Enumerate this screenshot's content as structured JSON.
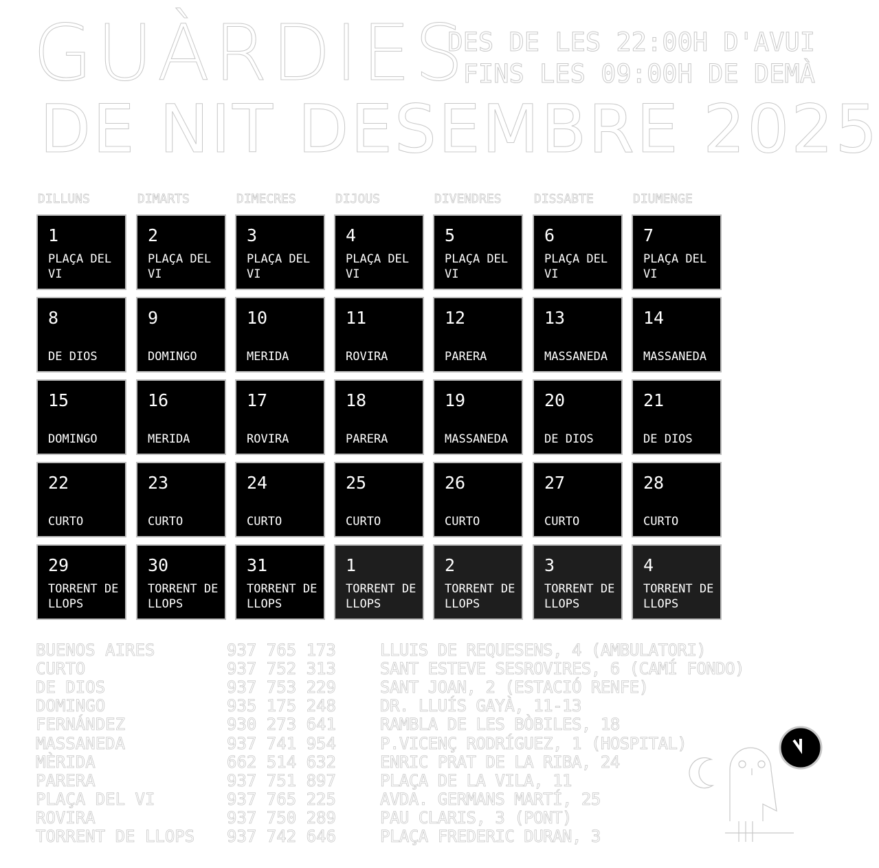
{
  "header": {
    "title_line1": "GUÀRDIES",
    "title_line2": "DE NIT DESEMBRE 2025",
    "hours_line1": "DES DE LES 22:00H D'AVUI",
    "hours_line2": "FINS LES 09:00H DE DEMÀ"
  },
  "weekdays": [
    "DILLUNS",
    "DIMARTS",
    "DIMECRES",
    "DIJOUS",
    "DIVENDRES",
    "DISSABTE",
    "DIUMENGE"
  ],
  "calendar": [
    {
      "day": "1",
      "pharmacy": "PLAÇA DEL VI"
    },
    {
      "day": "2",
      "pharmacy": "PLAÇA DEL VI"
    },
    {
      "day": "3",
      "pharmacy": "PLAÇA DEL VI"
    },
    {
      "day": "4",
      "pharmacy": "PLAÇA DEL VI"
    },
    {
      "day": "5",
      "pharmacy": "PLAÇA DEL VI"
    },
    {
      "day": "6",
      "pharmacy": "PLAÇA DEL VI"
    },
    {
      "day": "7",
      "pharmacy": "PLAÇA DEL VI"
    },
    {
      "day": "8",
      "pharmacy": "DE DIOS"
    },
    {
      "day": "9",
      "pharmacy": "DOMINGO"
    },
    {
      "day": "10",
      "pharmacy": "MERIDA"
    },
    {
      "day": "11",
      "pharmacy": "ROVIRA"
    },
    {
      "day": "12",
      "pharmacy": "PARERA"
    },
    {
      "day": "13",
      "pharmacy": "MASSANEDA"
    },
    {
      "day": "14",
      "pharmacy": "MASSANEDA"
    },
    {
      "day": "15",
      "pharmacy": "DOMINGO"
    },
    {
      "day": "16",
      "pharmacy": "MERIDA"
    },
    {
      "day": "17",
      "pharmacy": "ROVIRA"
    },
    {
      "day": "18",
      "pharmacy": "PARERA"
    },
    {
      "day": "19",
      "pharmacy": "MASSANEDA"
    },
    {
      "day": "20",
      "pharmacy": "DE DIOS"
    },
    {
      "day": "21",
      "pharmacy": "DE DIOS"
    },
    {
      "day": "22",
      "pharmacy": "CURTO"
    },
    {
      "day": "23",
      "pharmacy": "CURTO"
    },
    {
      "day": "24",
      "pharmacy": "CURTO"
    },
    {
      "day": "25",
      "pharmacy": "CURTO"
    },
    {
      "day": "26",
      "pharmacy": "CURTO"
    },
    {
      "day": "27",
      "pharmacy": "CURTO"
    },
    {
      "day": "28",
      "pharmacy": "CURTO"
    },
    {
      "day": "29",
      "pharmacy": "TORRENT DE LLOPS"
    },
    {
      "day": "30",
      "pharmacy": "TORRENT DE LLOPS"
    },
    {
      "day": "31",
      "pharmacy": "TORRENT DE LLOPS"
    },
    {
      "day": "1",
      "pharmacy": "TORRENT DE LLOPS",
      "next_month": true
    },
    {
      "day": "2",
      "pharmacy": "TORRENT DE LLOPS",
      "next_month": true
    },
    {
      "day": "3",
      "pharmacy": "TORRENT DE LLOPS",
      "next_month": true
    },
    {
      "day": "4",
      "pharmacy": "TORRENT DE LLOPS",
      "next_month": true
    }
  ],
  "pharmacies": [
    {
      "name": "BUENOS AIRES",
      "phone": "937 765 173",
      "address": "LLUIS DE REQUESENS, 4 (AMBULATORI)"
    },
    {
      "name": "CURTO",
      "phone": "937 752 313",
      "address": "SANT ESTEVE SESROVIRES, 6 (CAMÍ FONDO)"
    },
    {
      "name": "DE DIOS",
      "phone": "937 753 229",
      "address": "SANT JOAN, 2 (ESTACIÓ RENFE)"
    },
    {
      "name": "DOMINGO",
      "phone": "935 175 248",
      "address": "DR. LLUÍS GAYÀ, 11-13"
    },
    {
      "name": "FERNÁNDEZ",
      "phone": "930 273 641",
      "address": "RAMBLA DE LES BÒBILES, 18"
    },
    {
      "name": "MASSANEDA",
      "phone": "937 741 954",
      "address": "P.VICENÇ RODRÍGUEZ, 1 (HOSPITAL)"
    },
    {
      "name": "MÈRIDA",
      "phone": "662 514 632",
      "address": "ENRIC PRAT DE LA RIBA, 24"
    },
    {
      "name": "PARERA",
      "phone": "937 751 897",
      "address": "PLAÇA DE LA VILA, 11"
    },
    {
      "name": "PLAÇA DEL VI",
      "phone": "937 765 225",
      "address": "AVDA. GERMANS MARTÍ, 25"
    },
    {
      "name": "ROVIRA",
      "phone": "937 750 289",
      "address": "PAU CLARIS, 3 (PONT)"
    },
    {
      "name": "TORRENT DE LLOPS",
      "phone": "937 742 646",
      "address": "PLAÇA FREDERIC DURAN, 3"
    }
  ],
  "icons": {
    "logo": "owl-moon-clock-icon"
  },
  "colors": {
    "cell": "#000000",
    "cell_next_month": "#1e1e1e",
    "outline": "#c8c8c8"
  }
}
